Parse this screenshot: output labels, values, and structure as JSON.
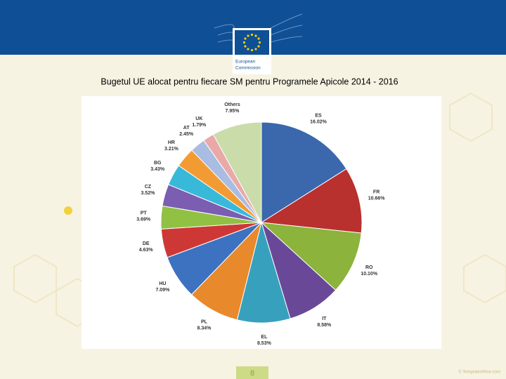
{
  "header": {
    "logo_text": [
      "European",
      "Commission"
    ]
  },
  "slide_title": "Bugetul UE alocat pentru fiecare SM pentru Programele Apicole 2014 - 2016",
  "page_number": "8",
  "footer": "© TemplatesWise.com",
  "chart_data": {
    "type": "pie",
    "categories": [
      "ES",
      "FR",
      "RO",
      "IT",
      "EL",
      "PL",
      "HU",
      "DE",
      "PT",
      "CZ",
      "BG",
      "HR",
      "AT",
      "UK",
      "Others"
    ],
    "values": [
      16.02,
      10.66,
      10.1,
      8.58,
      8.53,
      8.34,
      7.09,
      4.63,
      3.69,
      3.52,
      3.43,
      3.21,
      2.45,
      1.79,
      7.95
    ],
    "value_labels": [
      "16.02%",
      "10.66%",
      "10.10%",
      "8.58%",
      "8.53%",
      "8.34%",
      "7.09%",
      "4.63%",
      "3.69%",
      "3.52%",
      "3.43%",
      "3.21%",
      "2.45%",
      "1.79%",
      "7.95%"
    ],
    "colors": [
      "#3b67ad",
      "#b8312f",
      "#8cb33b",
      "#6a4898",
      "#37a1bd",
      "#e8892b",
      "#3d72c0",
      "#cd3836",
      "#91c143",
      "#7b5db1",
      "#39b9d9",
      "#f39b33",
      "#a9bde2",
      "#e9a9a8",
      "#c9dcaa"
    ]
  }
}
